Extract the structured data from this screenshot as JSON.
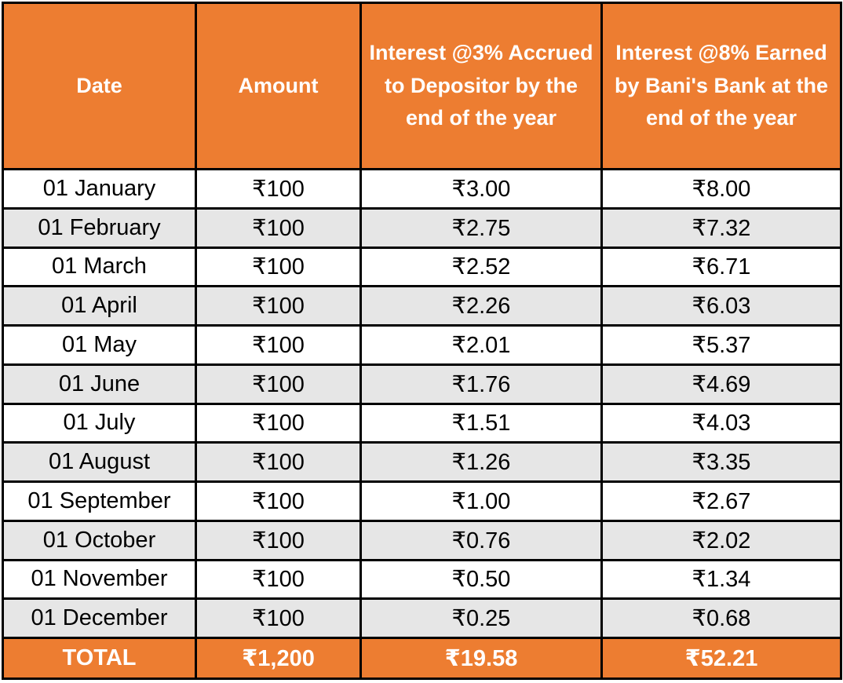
{
  "table": {
    "colors": {
      "header_bg": "#ED7D31",
      "header_text": "#FFFFFF",
      "alt_row_bg": "#E6E6E6",
      "row_bg": "#FFFFFF",
      "body_text": "#000000",
      "border": "#000000"
    },
    "columns": [
      {
        "label": "Date"
      },
      {
        "label": "Amount"
      },
      {
        "label": "Interest @3% Accrued to Depositor by the end of the year"
      },
      {
        "label": "Interest @8% Earned by Bani's Bank at the end of the year"
      }
    ],
    "rows": [
      {
        "date": "01 January",
        "amount": "₹100",
        "interest3": "₹3.00",
        "interest8": "₹8.00"
      },
      {
        "date": "01 February",
        "amount": "₹100",
        "interest3": "₹2.75",
        "interest8": "₹7.32"
      },
      {
        "date": "01 March",
        "amount": "₹100",
        "interest3": "₹2.52",
        "interest8": "₹6.71"
      },
      {
        "date": "01 April",
        "amount": "₹100",
        "interest3": "₹2.26",
        "interest8": "₹6.03"
      },
      {
        "date": "01 May",
        "amount": "₹100",
        "interest3": "₹2.01",
        "interest8": "₹5.37"
      },
      {
        "date": "01 June",
        "amount": "₹100",
        "interest3": "₹1.76",
        "interest8": "₹4.69"
      },
      {
        "date": "01 July",
        "amount": "₹100",
        "interest3": "₹1.51",
        "interest8": "₹4.03"
      },
      {
        "date": "01 August",
        "amount": "₹100",
        "interest3": "₹1.26",
        "interest8": "₹3.35"
      },
      {
        "date": "01 September",
        "amount": "₹100",
        "interest3": "₹1.00",
        "interest8": "₹2.67"
      },
      {
        "date": "01 October",
        "amount": "₹100",
        "interest3": "₹0.76",
        "interest8": "₹2.02"
      },
      {
        "date": "01 November",
        "amount": "₹100",
        "interest3": "₹0.50",
        "interest8": "₹1.34"
      },
      {
        "date": "01 December",
        "amount": "₹100",
        "interest3": "₹0.25",
        "interest8": "₹0.68"
      }
    ],
    "total": {
      "label": "TOTAL",
      "amount": "₹1,200",
      "interest3": "₹19.58",
      "interest8": "₹52.21"
    }
  }
}
